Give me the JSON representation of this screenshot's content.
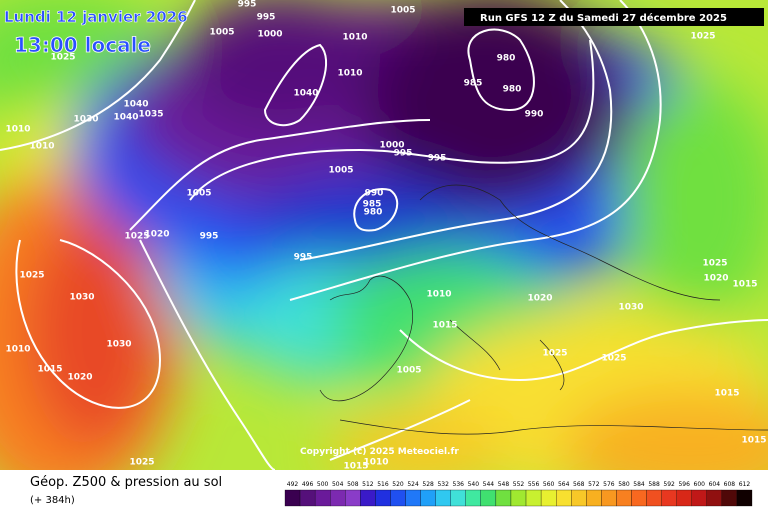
{
  "header": {
    "date": "Lundi 12 janvier 2026",
    "local_time": "13:00 locale",
    "run": "Run GFS 12 Z du Samedi 27 décembre 2025"
  },
  "copyright": "Copyright (c) 2025 Meteociel.fr",
  "footer": {
    "title": "Géop. Z500 & pression au sol",
    "lead": "(+ 384h)"
  },
  "legend": {
    "values": [
      492,
      496,
      500,
      504,
      508,
      512,
      516,
      520,
      524,
      528,
      532,
      536,
      540,
      544,
      548,
      552,
      556,
      560,
      564,
      568,
      572,
      576,
      580,
      584,
      588,
      592,
      596,
      600,
      604,
      608,
      612
    ],
    "colors": [
      "#3a0050",
      "#55107a",
      "#6a1a9a",
      "#7c2ab0",
      "#8a3cc8",
      "#3a1ac8",
      "#2030e0",
      "#2050f0",
      "#2078f8",
      "#20a0f8",
      "#30c8f0",
      "#40e0d8",
      "#40e8a0",
      "#40e070",
      "#70e040",
      "#a0e830",
      "#c8f030",
      "#e8f030",
      "#f8e030",
      "#f8c828",
      "#f8b020",
      "#f89820",
      "#f88020",
      "#f86820",
      "#f05020",
      "#e83820",
      "#d82818",
      "#c01818",
      "#901010",
      "#500808",
      "#100000"
    ]
  },
  "isobar_labels": [
    "995",
    "995",
    "1005",
    "1000",
    "1010",
    "1005",
    "1010",
    "1040",
    "1025",
    "1040",
    "1035",
    "1030",
    "1040",
    "1010",
    "1010",
    "980",
    "985",
    "980",
    "990",
    "1000",
    "995",
    "995",
    "1005",
    "1005",
    "990",
    "985",
    "980",
    "995",
    "1025",
    "1020",
    "995",
    "1025",
    "1030",
    "1010",
    "1020",
    "1030",
    "1025",
    "1020",
    "1015",
    "1015",
    "1030",
    "1010",
    "1015",
    "1020",
    "1005",
    "1025",
    "1025",
    "1015",
    "1025",
    "1015",
    "1010",
    "1015",
    "1025"
  ]
}
